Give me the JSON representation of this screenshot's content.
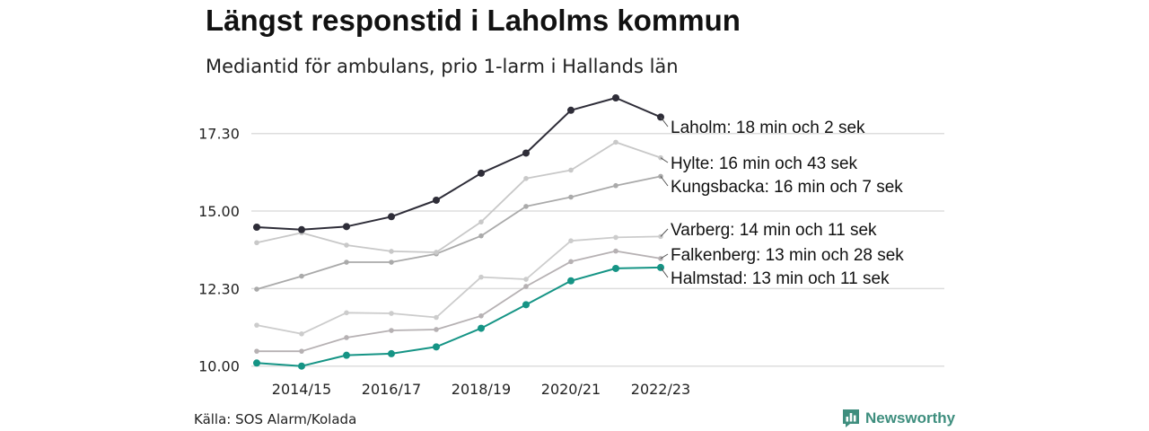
{
  "title": "Längst responstid i Laholms kommun",
  "subtitle": "Mediantid för ambulans, prio 1-larm i Hallands län",
  "source": "Källa: SOS Alarm/Kolada",
  "brand": {
    "name": "Newsworthy",
    "icon": "newsworthy-logo-icon",
    "color": "#3e8e7e"
  },
  "chart_data": {
    "type": "line",
    "x": [
      "2013/14",
      "2014/15",
      "2015/16",
      "2016/17",
      "2017/18",
      "2018/19",
      "2019/20",
      "2020/21",
      "2021/22",
      "2022/23"
    ],
    "x_tick_labels": [
      "2014/15",
      "2016/17",
      "2018/19",
      "2020/21",
      "2022/23"
    ],
    "y_ticks": [
      "10.00",
      "12.30",
      "15.00",
      "17.30"
    ],
    "ylim": [
      9.5,
      19.2
    ],
    "grid": true,
    "legend": "direct labels at line ends",
    "series": [
      {
        "name": "Varberg",
        "label": "Varberg: 14 min och 11 sek",
        "color": "#cccccc",
        "values": [
          11.32,
          11.04,
          11.72,
          11.7,
          11.57,
          12.87,
          12.8,
          14.04,
          14.15,
          14.18
        ]
      },
      {
        "name": "Falkenberg",
        "label": "Falkenberg: 13 min och 28 sek",
        "color": "#b6b1b3",
        "values": [
          10.48,
          10.48,
          10.92,
          11.15,
          11.18,
          11.62,
          12.57,
          13.37,
          13.71,
          13.47
        ]
      },
      {
        "name": "Kungsbacka",
        "label": "Kungsbacka: 16 min och 7 sek",
        "color": "#aaaaaa",
        "values": [
          12.48,
          12.9,
          13.35,
          13.35,
          13.62,
          14.2,
          15.15,
          15.45,
          15.82,
          16.12
        ]
      },
      {
        "name": "Hylte",
        "label": "Hylte: 16 min och 43 sek",
        "color": "#c8c8c8",
        "values": [
          13.98,
          14.3,
          13.9,
          13.7,
          13.67,
          14.65,
          16.05,
          16.32,
          17.22,
          16.72
        ]
      },
      {
        "name": "Halmstad",
        "label": "Halmstad: 13 min och 11 sek",
        "color": "#159485",
        "values": [
          10.1,
          10.0,
          10.35,
          10.4,
          10.62,
          11.22,
          11.98,
          12.75,
          13.15,
          13.18
        ]
      },
      {
        "name": "Laholm",
        "label": "Laholm: 18 min och 2 sek",
        "color": "#2e2d38",
        "values": [
          14.48,
          14.4,
          14.5,
          14.82,
          15.35,
          16.22,
          16.87,
          18.25,
          18.65,
          18.03
        ]
      }
    ]
  }
}
